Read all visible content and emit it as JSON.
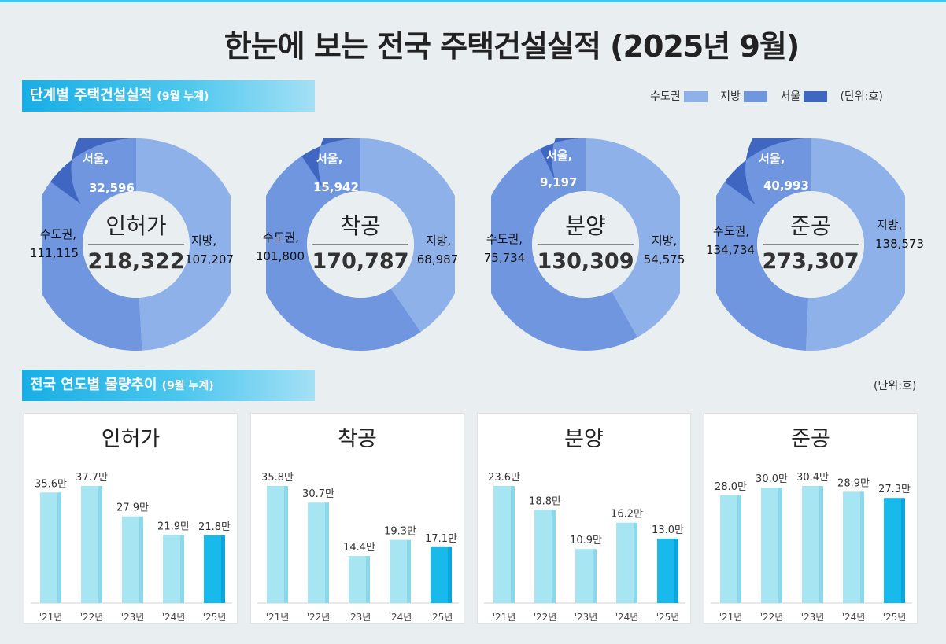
{
  "title": "한눈에 보는 전국 주택건설실적 (2025년 9월)",
  "section1": {
    "title": "단계별 주택건설실적",
    "sub": "(9월 누계)"
  },
  "section2": {
    "title": "전국 연도별 물량추이",
    "sub": "(9월 누계)"
  },
  "legend": [
    {
      "label": "수도권",
      "color": "#8eb1ea"
    },
    {
      "label": "지방",
      "color": "#6f96df"
    },
    {
      "label": "서울",
      "color": "#3f67c2"
    }
  ],
  "unit_label": "(단위:호)",
  "donuts": [
    {
      "name": "인허가",
      "total": "218,322",
      "seoul": {
        "label": "서울,",
        "value": "32,596",
        "num": 32596
      },
      "capital": {
        "label": "수도권,",
        "value": "111,115",
        "num": 111115
      },
      "local": {
        "label": "지방,",
        "value": "107,207",
        "num": 107207
      }
    },
    {
      "name": "착공",
      "total": "170,787",
      "seoul": {
        "label": "서울,",
        "value": "15,942",
        "num": 15942
      },
      "capital": {
        "label": "수도권,",
        "value": "101,800",
        "num": 101800
      },
      "local": {
        "label": "지방,",
        "value": "68,987",
        "num": 68987
      }
    },
    {
      "name": "분양",
      "total": "130,309",
      "seoul": {
        "label": "서울,",
        "value": "9,197",
        "num": 9197
      },
      "capital": {
        "label": "수도권,",
        "value": "75,734",
        "num": 75734
      },
      "local": {
        "label": "지방,",
        "value": "54,575",
        "num": 54575
      }
    },
    {
      "name": "준공",
      "total": "273,307",
      "seoul": {
        "label": "서울,",
        "value": "40,993",
        "num": 40993
      },
      "capital": {
        "label": "수도권,",
        "value": "134,734",
        "num": 134734
      },
      "local": {
        "label": "지방,",
        "value": "138,573",
        "num": 138573
      }
    }
  ],
  "chart_data": [
    {
      "type": "bar",
      "title": "인허가",
      "categories": [
        "'21년",
        "'22년",
        "'23년",
        "'24년",
        "'25년"
      ],
      "values": [
        35.6,
        37.7,
        27.9,
        21.9,
        21.8
      ],
      "value_labels": [
        "35.6만",
        "37.7만",
        "27.9만",
        "21.9만",
        "21.8만"
      ],
      "ylim": [
        0,
        40
      ],
      "unit": "만"
    },
    {
      "type": "bar",
      "title": "착공",
      "categories": [
        "'21년",
        "'22년",
        "'23년",
        "'24년",
        "'25년"
      ],
      "values": [
        35.8,
        30.7,
        14.4,
        19.3,
        17.1
      ],
      "value_labels": [
        "35.8만",
        "30.7만",
        "14.4만",
        "19.3만",
        "17.1만"
      ],
      "ylim": [
        0,
        40
      ],
      "unit": "만"
    },
    {
      "type": "bar",
      "title": "분양",
      "categories": [
        "'21년",
        "'22년",
        "'23년",
        "'24년",
        "'25년"
      ],
      "values": [
        23.6,
        18.8,
        10.9,
        16.2,
        13.0
      ],
      "value_labels": [
        "23.6만",
        "18.8만",
        "10.9만",
        "16.2만",
        "13.0만"
      ],
      "ylim": [
        0,
        25
      ],
      "unit": "만"
    },
    {
      "type": "bar",
      "title": "준공",
      "categories": [
        "'21년",
        "'22년",
        "'23년",
        "'24년",
        "'25년"
      ],
      "values": [
        28.0,
        30.0,
        30.4,
        28.9,
        27.3
      ],
      "value_labels": [
        "28.0만",
        "30.0만",
        "30.4만",
        "28.9만",
        "27.3만"
      ],
      "ylim": [
        0,
        32
      ],
      "unit": "만"
    }
  ],
  "colors": {
    "bar": "#a6e5f1",
    "bar_side": "#8bd8ea",
    "bar_current": "#17baeb",
    "bar_current_side": "#0aa6dc",
    "hole": "#e9eef1"
  }
}
